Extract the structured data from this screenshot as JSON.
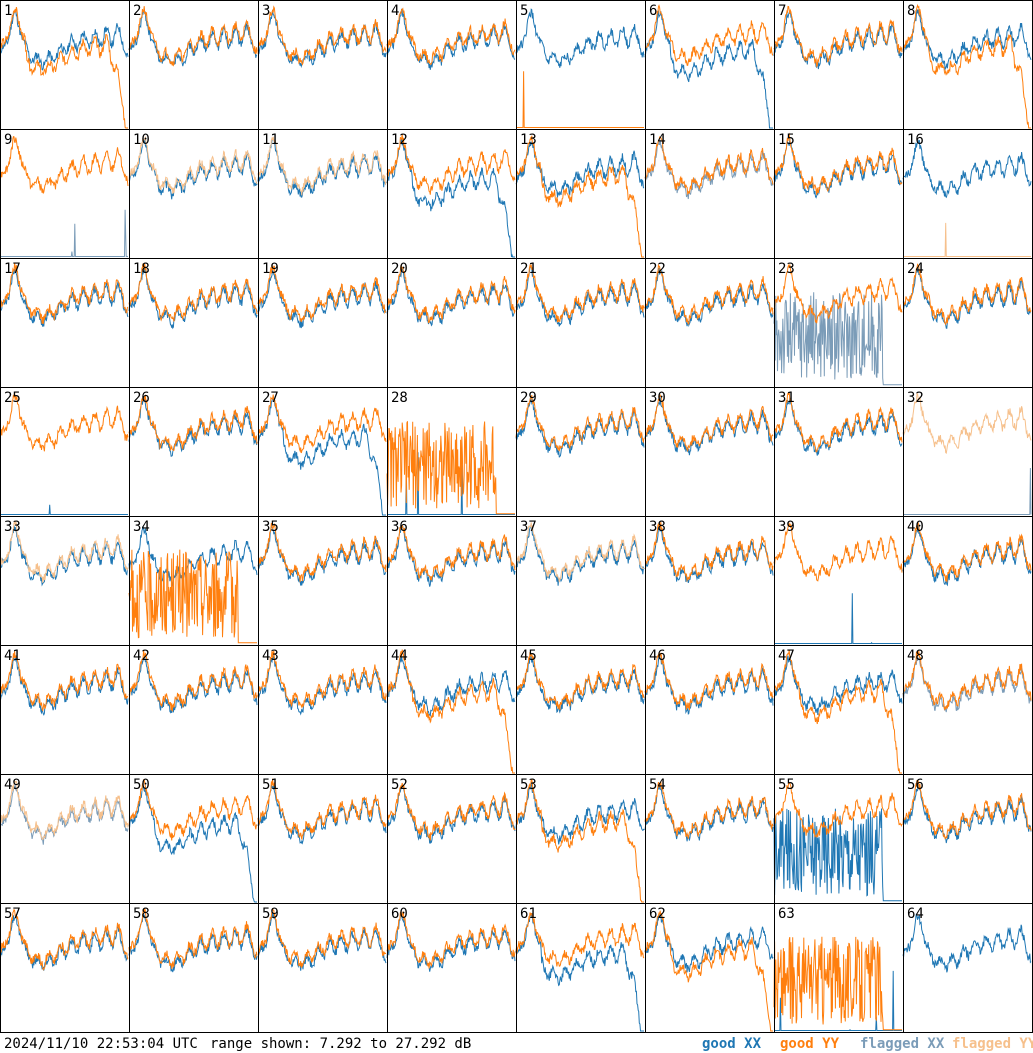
{
  "footer": {
    "timestamp": "2024/11/10 22:53:04 UTC",
    "range": "range shown: 7.292 to 27.292 dB"
  },
  "legend": [
    {
      "label": "good XX",
      "color": "#1f77b4"
    },
    {
      "label": "good YY",
      "color": "#ff7f0e"
    },
    {
      "label": "flagged XX",
      "color": "#7b9cb8"
    },
    {
      "label": "flagged YY",
      "color": "#f6c08c"
    }
  ],
  "chart_data": {
    "type": "line",
    "grid_rows": 8,
    "grid_cols": 8,
    "ylim": [
      7.292,
      27.292
    ],
    "yunit": "dB",
    "panels": [
      {
        "label": "1",
        "xx": "good",
        "yy": "good",
        "yy_shape": "drop"
      },
      {
        "label": "2",
        "xx": "good",
        "yy": "good"
      },
      {
        "label": "3",
        "xx": "good",
        "yy": "good"
      },
      {
        "label": "4",
        "xx": "good",
        "yy": "good"
      },
      {
        "label": "5",
        "xx": "good",
        "yy": "good",
        "yy_shape": "flat"
      },
      {
        "label": "6",
        "xx": "good",
        "yy": "good",
        "xx_shape": "drop"
      },
      {
        "label": "7",
        "xx": "good",
        "yy": "good"
      },
      {
        "label": "8",
        "xx": "good",
        "yy": "good",
        "yy_shape": "drop"
      },
      {
        "label": "9",
        "xx": "flagged",
        "yy": "good",
        "xx_shape": "flat"
      },
      {
        "label": "10",
        "xx": "good",
        "yy": "flagged"
      },
      {
        "label": "11",
        "xx": "good",
        "yy": "flagged"
      },
      {
        "label": "12",
        "xx": "good",
        "yy": "good",
        "xx_shape": "drop"
      },
      {
        "label": "13",
        "xx": "good",
        "yy": "good",
        "yy_shape": "drop"
      },
      {
        "label": "14",
        "xx": "flagged",
        "yy": "good"
      },
      {
        "label": "15",
        "xx": "good",
        "yy": "good"
      },
      {
        "label": "16",
        "xx": "good",
        "yy": "flagged",
        "yy_shape": "flat"
      },
      {
        "label": "17",
        "xx": "good",
        "yy": "good"
      },
      {
        "label": "18",
        "xx": "good",
        "yy": "good"
      },
      {
        "label": "19",
        "xx": "good",
        "yy": "good"
      },
      {
        "label": "20",
        "xx": "good",
        "yy": "good"
      },
      {
        "label": "21",
        "xx": "good",
        "yy": "good"
      },
      {
        "label": "22",
        "xx": "good",
        "yy": "good"
      },
      {
        "label": "23",
        "xx": "flagged",
        "yy": "good",
        "xx_shape": "noisy"
      },
      {
        "label": "24",
        "xx": "good",
        "yy": "good"
      },
      {
        "label": "25",
        "xx": "good",
        "yy": "good",
        "xx_shape": "flat"
      },
      {
        "label": "26",
        "xx": "good",
        "yy": "good"
      },
      {
        "label": "27",
        "xx": "good",
        "yy": "good",
        "xx_shape": "drop"
      },
      {
        "label": "28",
        "xx": "good",
        "yy": "good",
        "yy_shape": "noisy",
        "xx_shape": "flat"
      },
      {
        "label": "29",
        "xx": "good",
        "yy": "good"
      },
      {
        "label": "30",
        "xx": "good",
        "yy": "good"
      },
      {
        "label": "31",
        "xx": "good",
        "yy": "good"
      },
      {
        "label": "32",
        "xx": "flagged",
        "yy": "flagged",
        "xx_shape": "flat"
      },
      {
        "label": "33",
        "xx": "good",
        "yy": "flagged"
      },
      {
        "label": "34",
        "xx": "good",
        "yy": "good",
        "yy_shape": "noisy"
      },
      {
        "label": "35",
        "xx": "good",
        "yy": "good"
      },
      {
        "label": "36",
        "xx": "good",
        "yy": "good"
      },
      {
        "label": "37",
        "xx": "good",
        "yy": "flagged"
      },
      {
        "label": "38",
        "xx": "good",
        "yy": "good"
      },
      {
        "label": "39",
        "xx": "good",
        "yy": "good",
        "xx_shape": "flat"
      },
      {
        "label": "40",
        "xx": "good",
        "yy": "good"
      },
      {
        "label": "41",
        "xx": "good",
        "yy": "good"
      },
      {
        "label": "42",
        "xx": "good",
        "yy": "good"
      },
      {
        "label": "43",
        "xx": "good",
        "yy": "good"
      },
      {
        "label": "44",
        "xx": "good",
        "yy": "good",
        "yy_shape": "drop"
      },
      {
        "label": "45",
        "xx": "good",
        "yy": "good"
      },
      {
        "label": "46",
        "xx": "good",
        "yy": "good"
      },
      {
        "label": "47",
        "xx": "good",
        "yy": "good",
        "yy_shape": "drop"
      },
      {
        "label": "48",
        "xx": "flagged",
        "yy": "good"
      },
      {
        "label": "49",
        "xx": "flagged",
        "yy": "flagged"
      },
      {
        "label": "50",
        "xx": "good",
        "yy": "good",
        "xx_shape": "drop"
      },
      {
        "label": "51",
        "xx": "good",
        "yy": "good"
      },
      {
        "label": "52",
        "xx": "good",
        "yy": "good"
      },
      {
        "label": "53",
        "xx": "good",
        "yy": "good",
        "yy_shape": "drop"
      },
      {
        "label": "54",
        "xx": "good",
        "yy": "good"
      },
      {
        "label": "55",
        "xx": "good",
        "yy": "good",
        "xx_shape": "noisy"
      },
      {
        "label": "56",
        "xx": "good",
        "yy": "good"
      },
      {
        "label": "57",
        "xx": "good",
        "yy": "good"
      },
      {
        "label": "58",
        "xx": "good",
        "yy": "good"
      },
      {
        "label": "59",
        "xx": "good",
        "yy": "good"
      },
      {
        "label": "60",
        "xx": "good",
        "yy": "good"
      },
      {
        "label": "61",
        "xx": "good",
        "yy": "good",
        "xx_shape": "drop"
      },
      {
        "label": "62",
        "xx": "good",
        "yy": "good",
        "yy_shape": "drop"
      },
      {
        "label": "63",
        "xx": "good",
        "yy": "good",
        "yy_shape": "noisy",
        "xx_shape": "flat"
      },
      {
        "label": "64",
        "xx": "good",
        "yy": "none"
      }
    ]
  }
}
